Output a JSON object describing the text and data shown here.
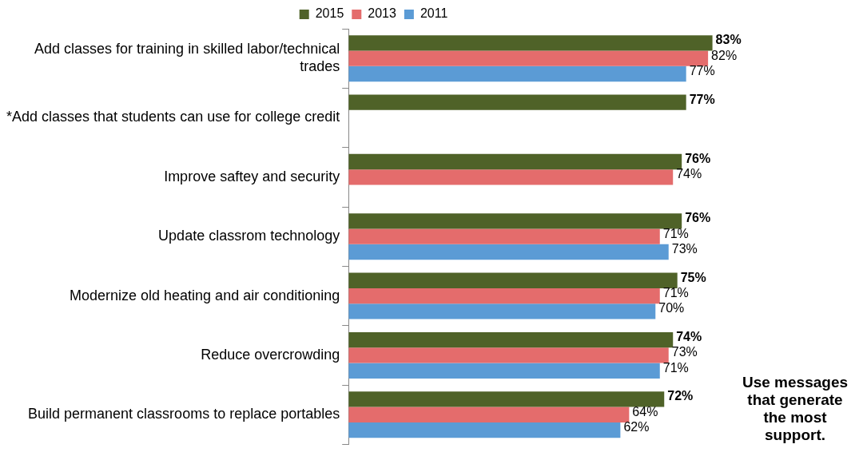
{
  "chart_data": {
    "type": "bar",
    "orientation": "horizontal",
    "legend": "top",
    "tick_labels": "y",
    "categories": [
      "Add classes for training in skilled labor/technical trades",
      "*Add classes that students can use for college credit",
      "Improve saftey and security",
      "Update classrom technology",
      "Modernize old heating and air conditioning",
      "Reduce overcrowding",
      "Build permanent classrooms to replace portables"
    ],
    "series": [
      {
        "name": "2015",
        "color": "#4f6228",
        "values": [
          83,
          77,
          76,
          76,
          75,
          74,
          72
        ],
        "value_labels": [
          "83%",
          "77%",
          "76%",
          "76%",
          "75%",
          "74%",
          "72%"
        ]
      },
      {
        "name": "2013",
        "color": "#e46c6c",
        "values": [
          82,
          null,
          74,
          71,
          71,
          73,
          64
        ],
        "value_labels": [
          "82%",
          null,
          "74%",
          "71%",
          "71%",
          "73%",
          "64%"
        ]
      },
      {
        "name": "2011",
        "color": "#5b9bd5",
        "values": [
          77,
          null,
          null,
          73,
          70,
          71,
          62
        ],
        "value_labels": [
          "77%",
          null,
          null,
          "73%",
          "70%",
          "71%",
          "62%"
        ]
      }
    ],
    "annotations": [
      "Use messages that generate the most support."
    ]
  }
}
